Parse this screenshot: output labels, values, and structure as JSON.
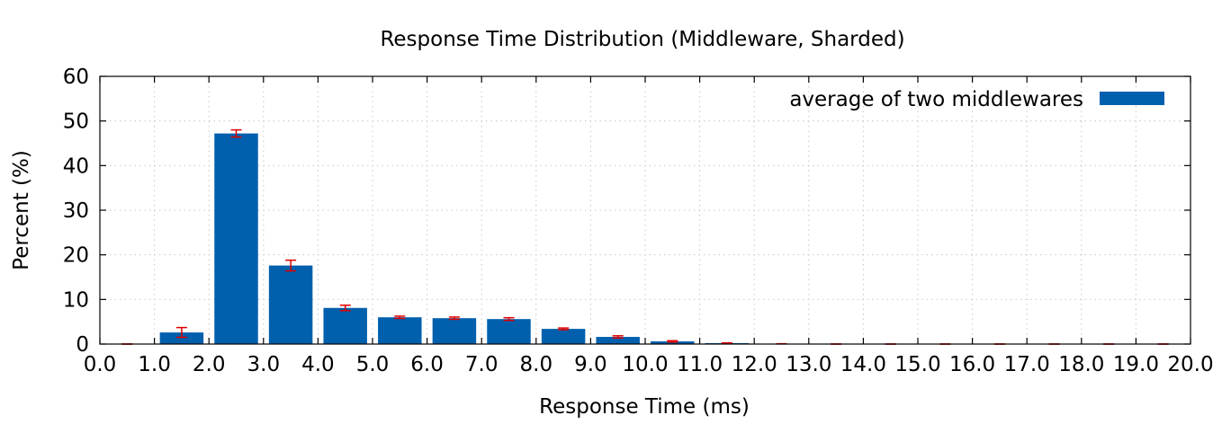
{
  "chart_data": {
    "type": "bar",
    "title": "Response Time Distribution (Middleware, Sharded)",
    "xlabel": "Response Time (ms)",
    "ylabel": "Percent (%)",
    "xlim": [
      0,
      20
    ],
    "ylim": [
      0,
      60
    ],
    "x_ticks": [
      "0.0",
      "1.0",
      "2.0",
      "3.0",
      "4.0",
      "5.0",
      "6.0",
      "7.0",
      "8.0",
      "9.0",
      "10.0",
      "11.0",
      "12.0",
      "13.0",
      "14.0",
      "15.0",
      "16.0",
      "17.0",
      "18.0",
      "19.0",
      "20.0"
    ],
    "y_ticks": [
      "0",
      "10",
      "20",
      "30",
      "40",
      "50",
      "60"
    ],
    "grid": true,
    "legend_position": "top-right",
    "series": [
      {
        "name": "average of two middlewares",
        "color": "#0060ad",
        "error_color": "#dd0000",
        "bin_starts": [
          0,
          1,
          2,
          3,
          4,
          5,
          6,
          7,
          8,
          9,
          10,
          11,
          12,
          13,
          14,
          15,
          16,
          17,
          18,
          19
        ],
        "values": [
          0.0,
          2.6,
          47.2,
          17.6,
          8.1,
          6.0,
          5.8,
          5.6,
          3.4,
          1.6,
          0.6,
          0.2,
          0.05,
          0,
          0,
          0,
          0,
          0,
          0,
          0
        ],
        "errors": [
          0.0,
          1.1,
          0.8,
          1.2,
          0.6,
          0.25,
          0.25,
          0.3,
          0.2,
          0.25,
          0.15,
          0.05,
          0.02,
          0,
          0,
          0,
          0,
          0,
          0,
          0
        ]
      }
    ]
  }
}
